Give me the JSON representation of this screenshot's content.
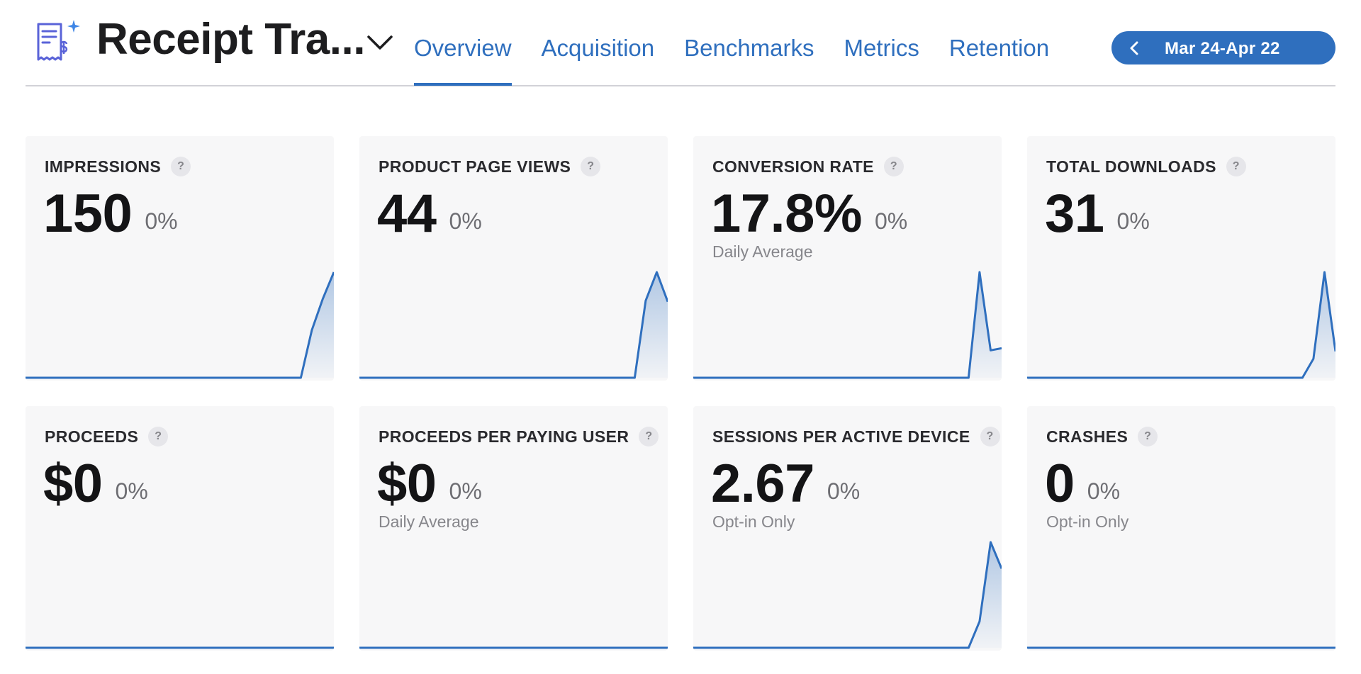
{
  "header": {
    "app_title": "Receipt Tra...",
    "app_icon": "receipt-dollar-sparkle-icon",
    "tabs": [
      {
        "label": "Overview",
        "active": true
      },
      {
        "label": "Acquisition",
        "active": false
      },
      {
        "label": "Benchmarks",
        "active": false
      },
      {
        "label": "Metrics",
        "active": false
      },
      {
        "label": "Retention",
        "active": false
      }
    ],
    "date_range": "Mar 24-Apr 22",
    "help_glyph": "?"
  },
  "colors": {
    "accent": "#2f6fbe",
    "card_bg": "#f7f7f8",
    "text_primary": "#141416",
    "text_secondary": "#86868b"
  },
  "cards": [
    {
      "id": "impressions",
      "label": "IMPRESSIONS",
      "value": "150",
      "delta": "0%",
      "subtitle": "",
      "sparkline": [
        0,
        0,
        0,
        0,
        0,
        0,
        0,
        0,
        0,
        0,
        0,
        0,
        0,
        0,
        0,
        0,
        0,
        0,
        0,
        0,
        0,
        0,
        0,
        0,
        0,
        0,
        0.45,
        0.75,
        1.0
      ]
    },
    {
      "id": "product-page-views",
      "label": "PRODUCT PAGE VIEWS",
      "value": "44",
      "delta": "0%",
      "subtitle": "",
      "sparkline": [
        0,
        0,
        0,
        0,
        0,
        0,
        0,
        0,
        0,
        0,
        0,
        0,
        0,
        0,
        0,
        0,
        0,
        0,
        0,
        0,
        0,
        0,
        0,
        0,
        0,
        0,
        0.73,
        1.0,
        0.72
      ]
    },
    {
      "id": "conversion-rate",
      "label": "CONVERSION RATE",
      "value": "17.8%",
      "delta": "0%",
      "subtitle": "Daily Average",
      "sparkline": [
        0,
        0,
        0,
        0,
        0,
        0,
        0,
        0,
        0,
        0,
        0,
        0,
        0,
        0,
        0,
        0,
        0,
        0,
        0,
        0,
        0,
        0,
        0,
        0,
        0,
        0,
        1.0,
        0.26,
        0.28
      ]
    },
    {
      "id": "total-downloads",
      "label": "TOTAL DOWNLOADS",
      "value": "31",
      "delta": "0%",
      "subtitle": "",
      "sparkline": [
        0,
        0,
        0,
        0,
        0,
        0,
        0,
        0,
        0,
        0,
        0,
        0,
        0,
        0,
        0,
        0,
        0,
        0,
        0,
        0,
        0,
        0,
        0,
        0,
        0,
        0,
        0.18,
        1.0,
        0.25
      ]
    },
    {
      "id": "proceeds",
      "label": "PROCEEDS",
      "value": "$0",
      "delta": "0%",
      "subtitle": "",
      "sparkline": [
        0,
        0,
        0,
        0,
        0,
        0,
        0,
        0,
        0,
        0,
        0,
        0,
        0,
        0,
        0,
        0,
        0,
        0,
        0,
        0,
        0,
        0,
        0,
        0,
        0,
        0,
        0,
        0,
        0
      ]
    },
    {
      "id": "proceeds-per-paying-user",
      "label": "PROCEEDS PER PAYING USER",
      "value": "$0",
      "delta": "0%",
      "subtitle": "Daily Average",
      "sparkline": [
        0,
        0,
        0,
        0,
        0,
        0,
        0,
        0,
        0,
        0,
        0,
        0,
        0,
        0,
        0,
        0,
        0,
        0,
        0,
        0,
        0,
        0,
        0,
        0,
        0,
        0,
        0,
        0,
        0
      ]
    },
    {
      "id": "sessions-per-active-device",
      "label": "SESSIONS PER ACTIVE DEVICE",
      "value": "2.67",
      "delta": "0%",
      "subtitle": "Opt-in Only",
      "sparkline": [
        0,
        0,
        0,
        0,
        0,
        0,
        0,
        0,
        0,
        0,
        0,
        0,
        0,
        0,
        0,
        0,
        0,
        0,
        0,
        0,
        0,
        0,
        0,
        0,
        0,
        0,
        0.25,
        1.0,
        0.75
      ]
    },
    {
      "id": "crashes",
      "label": "CRASHES",
      "value": "0",
      "delta": "0%",
      "subtitle": "Opt-in Only",
      "sparkline": [
        0,
        0,
        0,
        0,
        0,
        0,
        0,
        0,
        0,
        0,
        0,
        0,
        0,
        0,
        0,
        0,
        0,
        0,
        0,
        0,
        0,
        0,
        0,
        0,
        0,
        0,
        0,
        0,
        0
      ]
    }
  ]
}
